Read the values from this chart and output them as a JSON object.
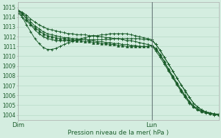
{
  "title": "Pression niveau de la mer( hPa )",
  "ylim": [
    1003.5,
    1015.5
  ],
  "yticks": [
    1004,
    1005,
    1006,
    1007,
    1008,
    1009,
    1010,
    1011,
    1012,
    1013,
    1014,
    1015
  ],
  "xtick_labels": [
    "Dim",
    "Lun"
  ],
  "xtick_positions": [
    0,
    32
  ],
  "bg_color": "#d4ede0",
  "grid_color": "#aed4bf",
  "line_color": "#1a5c2a",
  "vline_x": 32,
  "n_points": 49,
  "series": [
    [
      1014.7,
      1014.5,
      1014.2,
      1013.8,
      1013.5,
      1013.2,
      1013.0,
      1012.8,
      1012.7,
      1012.6,
      1012.5,
      1012.4,
      1012.3,
      1012.3,
      1012.2,
      1012.2,
      1012.2,
      1012.1,
      1012.1,
      1012.0,
      1012.0,
      1011.9,
      1011.9,
      1011.8,
      1011.8,
      1011.7,
      1011.6,
      1011.6,
      1011.5,
      1011.4,
      1011.3,
      1011.2,
      1011.1,
      1010.5,
      1009.9,
      1009.2,
      1008.5,
      1007.8,
      1007.1,
      1006.4,
      1005.8,
      1005.2,
      1004.8,
      1004.5,
      1004.3,
      1004.2,
      1004.1,
      1004.0,
      1004.0
    ],
    [
      1014.7,
      1014.4,
      1014.0,
      1013.5,
      1013.1,
      1012.8,
      1012.5,
      1012.3,
      1012.2,
      1012.1,
      1012.0,
      1011.9,
      1011.9,
      1011.8,
      1011.8,
      1011.7,
      1011.7,
      1011.6,
      1011.6,
      1011.5,
      1011.5,
      1011.4,
      1011.4,
      1011.3,
      1011.3,
      1011.2,
      1011.2,
      1011.1,
      1011.1,
      1011.0,
      1011.0,
      1011.0,
      1011.1,
      1010.7,
      1010.1,
      1009.4,
      1008.6,
      1007.9,
      1007.2,
      1006.5,
      1005.9,
      1005.3,
      1004.9,
      1004.6,
      1004.4,
      1004.3,
      1004.2,
      1004.1,
      1004.1
    ],
    [
      1014.7,
      1014.3,
      1013.8,
      1013.3,
      1012.9,
      1012.6,
      1012.3,
      1012.1,
      1012.0,
      1011.9,
      1011.8,
      1011.8,
      1011.7,
      1011.7,
      1011.6,
      1011.6,
      1011.5,
      1011.5,
      1011.4,
      1011.4,
      1011.3,
      1011.3,
      1011.2,
      1011.2,
      1011.1,
      1011.1,
      1011.0,
      1011.0,
      1011.0,
      1011.0,
      1011.0,
      1011.0,
      1011.1,
      1010.8,
      1010.2,
      1009.5,
      1008.7,
      1008.0,
      1007.3,
      1006.6,
      1006.0,
      1005.4,
      1004.9,
      1004.6,
      1004.4,
      1004.3,
      1004.2,
      1004.1,
      1004.05
    ],
    [
      1014.4,
      1014.0,
      1013.6,
      1013.2,
      1012.7,
      1012.3,
      1012.0,
      1011.8,
      1011.7,
      1011.6,
      1011.6,
      1011.6,
      1011.6,
      1011.6,
      1011.6,
      1011.7,
      1011.7,
      1011.7,
      1011.7,
      1011.7,
      1011.7,
      1011.7,
      1011.7,
      1011.8,
      1011.8,
      1011.8,
      1011.8,
      1011.8,
      1011.8,
      1011.8,
      1011.7,
      1011.7,
      1011.6,
      1011.2,
      1010.6,
      1009.9,
      1009.2,
      1008.5,
      1007.8,
      1007.1,
      1006.5,
      1005.8,
      1005.2,
      1004.8,
      1004.5,
      1004.3,
      1004.2,
      1004.1,
      1004.0
    ],
    [
      1014.7,
      1014.0,
      1013.2,
      1012.5,
      1011.8,
      1011.3,
      1010.9,
      1010.7,
      1010.7,
      1010.8,
      1011.0,
      1011.2,
      1011.4,
      1011.5,
      1011.7,
      1011.8,
      1011.9,
      1012.0,
      1012.1,
      1012.1,
      1012.2,
      1012.2,
      1012.3,
      1012.3,
      1012.3,
      1012.3,
      1012.3,
      1012.2,
      1012.1,
      1012.0,
      1011.9,
      1011.8,
      1011.7,
      1011.2,
      1010.6,
      1009.9,
      1009.2,
      1008.5,
      1007.8,
      1007.1,
      1006.4,
      1005.8,
      1005.2,
      1004.8,
      1004.5,
      1004.3,
      1004.2,
      1004.1,
      1004.0
    ]
  ]
}
